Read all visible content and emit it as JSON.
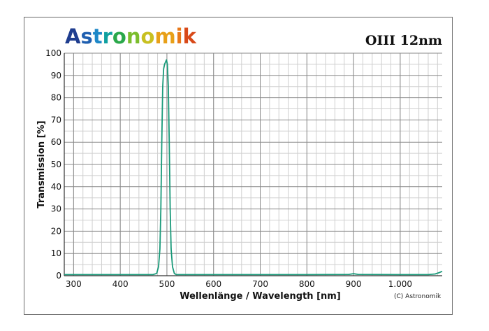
{
  "brand": {
    "logo_text": "Astronomik",
    "logo_colors": [
      "#1f3d8f",
      "#1f5fb0",
      "#1e88c8",
      "#0fa0a0",
      "#2aa84a",
      "#7bbd2c",
      "#c8c020",
      "#e8a018",
      "#e87818",
      "#d84818"
    ]
  },
  "product_title": "OIII 12nm",
  "copyright": "(C) Astronomik",
  "chart_data": {
    "type": "line",
    "title": "OIII 12nm",
    "xlabel": "Wellenlänge / Wavelength [nm]",
    "ylabel": "Transmission [%]",
    "xlim": [
      280,
      1090
    ],
    "ylim": [
      0,
      100
    ],
    "x_ticks": [
      300,
      400,
      500,
      600,
      700,
      800,
      900,
      1000
    ],
    "x_tick_labels": [
      "300",
      "400",
      "500",
      "600",
      "700",
      "800",
      "900",
      "1.000"
    ],
    "y_ticks": [
      0,
      10,
      20,
      30,
      40,
      50,
      60,
      70,
      80,
      90,
      100
    ],
    "y_tick_labels": [
      "0",
      "10",
      "20",
      "30",
      "40",
      "50",
      "60",
      "70",
      "80",
      "90",
      "100"
    ],
    "grid": true,
    "line_color": "#1a9a7a",
    "series": [
      {
        "x": [
          280,
          470,
          478,
          482,
          485,
          487,
          489,
          491,
          493,
          495,
          497,
          499,
          501,
          503,
          505,
          507,
          509,
          512,
          516,
          520,
          600,
          700,
          800,
          890,
          900,
          910,
          1000,
          1060,
          1075,
          1085,
          1090
        ],
        "y": [
          0.5,
          0.5,
          1,
          4,
          12,
          30,
          60,
          85,
          93,
          95,
          96,
          97,
          95,
          85,
          60,
          30,
          12,
          4,
          1,
          0.5,
          0.5,
          0.5,
          0.5,
          0.6,
          0.9,
          0.6,
          0.5,
          0.5,
          0.8,
          1.5,
          2
        ]
      }
    ]
  }
}
